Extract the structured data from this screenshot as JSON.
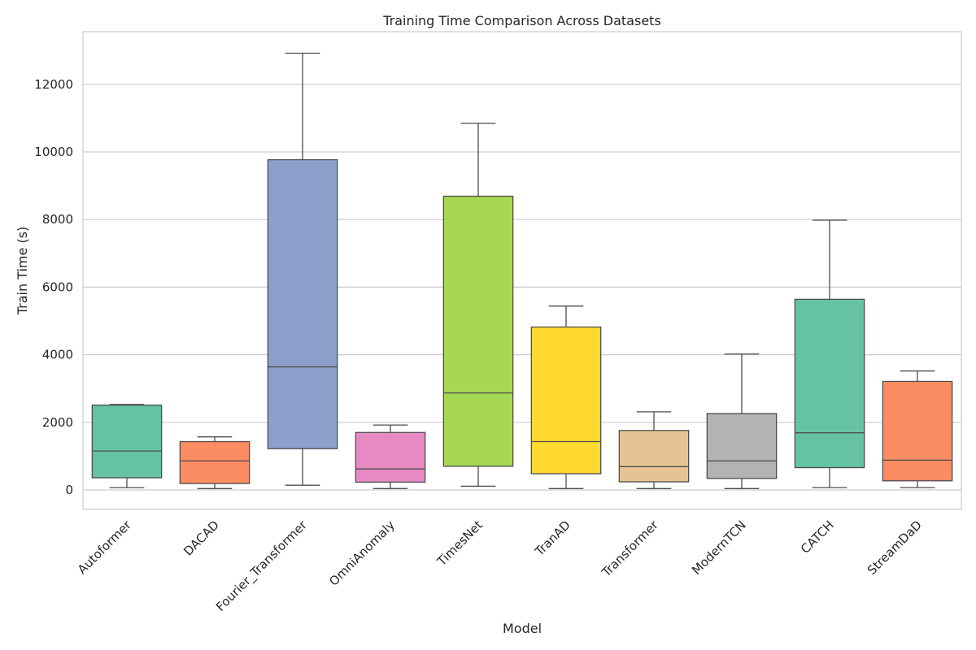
{
  "chart_data": {
    "type": "box",
    "title": "Training Time Comparison Across Datasets",
    "xlabel": "Model",
    "ylabel": "Train Time (s)",
    "ylim": [
      -600,
      13500
    ],
    "yticks": [
      0,
      2000,
      4000,
      6000,
      8000,
      10000,
      12000
    ],
    "grid": true,
    "categories": [
      "Autoformer",
      "DACAD",
      "Fourier_Transformer",
      "OmniAnomaly",
      "TimesNet",
      "TranAD",
      "Transformer",
      "ModernTCN",
      "CATCH",
      "StreamDaD"
    ],
    "boxes": [
      {
        "category": "Autoformer",
        "whisker_low": 70,
        "q1": 360,
        "median": 1150,
        "q3": 2510,
        "whisker_high": 2530,
        "color": "#66c2a5"
      },
      {
        "category": "DACAD",
        "whisker_low": 40,
        "q1": 190,
        "median": 860,
        "q3": 1430,
        "whisker_high": 1570,
        "color": "#fc8d62"
      },
      {
        "category": "Fourier_Transformer",
        "whisker_low": 140,
        "q1": 1220,
        "median": 3640,
        "q3": 9770,
        "whisker_high": 12920,
        "color": "#8da0cb"
      },
      {
        "category": "OmniAnomaly",
        "whisker_low": 40,
        "q1": 230,
        "median": 620,
        "q3": 1700,
        "whisker_high": 1920,
        "color": "#e78ac3"
      },
      {
        "category": "TimesNet",
        "whisker_low": 110,
        "q1": 700,
        "median": 2870,
        "q3": 8690,
        "whisker_high": 10850,
        "color": "#a6d854"
      },
      {
        "category": "TranAD",
        "whisker_low": 40,
        "q1": 480,
        "median": 1430,
        "q3": 4820,
        "whisker_high": 5440,
        "color": "#ffd92f"
      },
      {
        "category": "Transformer",
        "whisker_low": 40,
        "q1": 240,
        "median": 690,
        "q3": 1760,
        "whisker_high": 2310,
        "color": "#e5c494"
      },
      {
        "category": "ModernTCN",
        "whisker_low": 40,
        "q1": 340,
        "median": 860,
        "q3": 2260,
        "whisker_high": 4020,
        "color": "#b3b3b3"
      },
      {
        "category": "CATCH",
        "whisker_low": 70,
        "q1": 660,
        "median": 1690,
        "q3": 5640,
        "whisker_high": 7980,
        "color": "#66c2a5"
      },
      {
        "category": "StreamDaD",
        "whisker_low": 70,
        "q1": 270,
        "median": 880,
        "q3": 3210,
        "whisker_high": 3520,
        "color": "#fc8d62"
      }
    ]
  }
}
